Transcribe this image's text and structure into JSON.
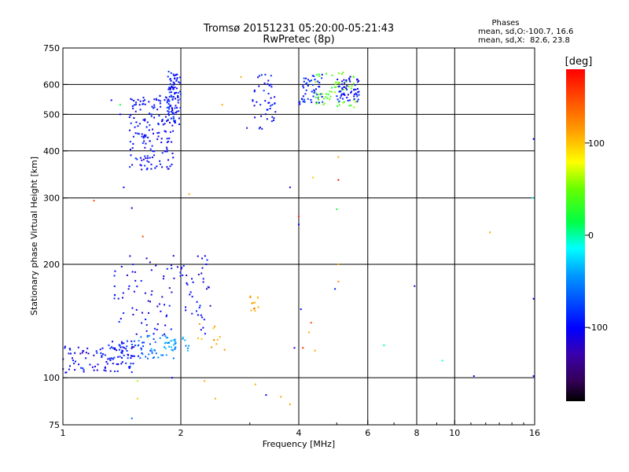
{
  "chart_data": {
    "type": "scatter",
    "title": "Tromsø 20151231 05:20:00-05:21:43",
    "subtitle": "RwPretec (8p)",
    "xlabel": "Frequency [MHz]",
    "ylabel": "Stationary phase Virtual Height [km]",
    "x_scale": "log",
    "y_scale": "log",
    "xlim": [
      1,
      16
    ],
    "ylim": [
      75,
      750
    ],
    "grid": true,
    "x_ticks": [
      1,
      2,
      4,
      6,
      8,
      10,
      16
    ],
    "x_tick_labels": [
      "1",
      "2",
      "4",
      "6",
      "8",
      "10",
      "16"
    ],
    "x_grid": [
      2,
      4,
      6,
      8,
      10
    ],
    "y_ticks": [
      75,
      100,
      200,
      300,
      400,
      500,
      600,
      750
    ],
    "y_tick_labels": [
      "75",
      "100",
      "200",
      "300",
      "400",
      "500",
      "600",
      "750"
    ],
    "y_grid": [
      100,
      200,
      300,
      400,
      500,
      600
    ],
    "phases_box": {
      "title": "Phases",
      "line1": "mean, sd,O:-100.7, 16.6",
      "line2": "mean, sd,X:  82.6, 23.8"
    },
    "colorbar": {
      "label": "[deg]",
      "range": [
        -180,
        180
      ],
      "ticks": [
        -100,
        0,
        100
      ],
      "tick_labels": [
        "-100",
        "0",
        "100"
      ]
    },
    "clusters": [
      {
        "f": [
          1.0,
          1.55
        ],
        "h": [
          103,
          122
        ],
        "phase": -100,
        "n": 90
      },
      {
        "f": [
          1.3,
          1.6
        ],
        "h": [
          112,
          126
        ],
        "phase": -90,
        "n": 40
      },
      {
        "f": [
          1.55,
          1.95
        ],
        "h": [
          112,
          130
        ],
        "phase": -60,
        "n": 40
      },
      {
        "f": [
          1.35,
          2.4
        ],
        "h": [
          130,
          215
        ],
        "phase": -105,
        "n": 110
      },
      {
        "f": [
          1.8,
          2.1
        ],
        "h": [
          118,
          128
        ],
        "phase": -40,
        "n": 25
      },
      {
        "f": [
          2.2,
          2.6
        ],
        "h": [
          118,
          140
        ],
        "phase": 110,
        "n": 12
      },
      {
        "f": [
          3.0,
          3.2
        ],
        "h": [
          150,
          165
        ],
        "phase": 115,
        "n": 12
      },
      {
        "f": [
          1.48,
          1.92
        ],
        "h": [
          355,
          560
        ],
        "phase": -100,
        "n": 170
      },
      {
        "f": [
          1.85,
          2.0
        ],
        "h": [
          470,
          650
        ],
        "phase": -95,
        "n": 90
      },
      {
        "f": [
          3.05,
          3.5
        ],
        "h": [
          455,
          640
        ],
        "phase": -100,
        "n": 45
      },
      {
        "f": [
          4.0,
          4.6
        ],
        "h": [
          530,
          640
        ],
        "phase": -90,
        "n": 50
      },
      {
        "f": [
          4.4,
          5.6
        ],
        "h": [
          520,
          650
        ],
        "phase": 40,
        "n": 60
      },
      {
        "f": [
          5.0,
          5.7
        ],
        "h": [
          540,
          630
        ],
        "phase": -100,
        "n": 60
      }
    ],
    "points": [
      {
        "f": 1.33,
        "h": 545,
        "phase": -100
      },
      {
        "f": 1.4,
        "h": 530,
        "phase": 20
      },
      {
        "f": 1.4,
        "h": 500,
        "phase": -100
      },
      {
        "f": 1.43,
        "h": 320,
        "phase": -100
      },
      {
        "f": 1.5,
        "h": 282,
        "phase": -105
      },
      {
        "f": 1.2,
        "h": 295,
        "phase": 150
      },
      {
        "f": 1.6,
        "h": 237,
        "phase": 150
      },
      {
        "f": 2.1,
        "h": 307,
        "phase": 110
      },
      {
        "f": 2.55,
        "h": 530,
        "phase": 110
      },
      {
        "f": 2.85,
        "h": 628,
        "phase": 110
      },
      {
        "f": 2.95,
        "h": 460,
        "phase": -90
      },
      {
        "f": 3.8,
        "h": 320,
        "phase": -120
      },
      {
        "f": 4.0,
        "h": 268,
        "phase": 160
      },
      {
        "f": 4.0,
        "h": 255,
        "phase": -100
      },
      {
        "f": 4.35,
        "h": 340,
        "phase": 100
      },
      {
        "f": 5.05,
        "h": 385,
        "phase": 110
      },
      {
        "f": 5.05,
        "h": 335,
        "phase": 170
      },
      {
        "f": 5.0,
        "h": 280,
        "phase": 20
      },
      {
        "f": 5.05,
        "h": 200,
        "phase": 110
      },
      {
        "f": 5.05,
        "h": 180,
        "phase": 120
      },
      {
        "f": 4.95,
        "h": 172,
        "phase": -90
      },
      {
        "f": 4.05,
        "h": 152,
        "phase": -100
      },
      {
        "f": 4.25,
        "h": 132,
        "phase": 110
      },
      {
        "f": 4.3,
        "h": 140,
        "phase": 150
      },
      {
        "f": 3.9,
        "h": 120,
        "phase": -120
      },
      {
        "f": 4.1,
        "h": 120,
        "phase": 160
      },
      {
        "f": 4.4,
        "h": 118,
        "phase": 110
      },
      {
        "f": 7.9,
        "h": 175,
        "phase": -120
      },
      {
        "f": 6.6,
        "h": 122,
        "phase": 0
      },
      {
        "f": 9.3,
        "h": 111,
        "phase": -10
      },
      {
        "f": 12.3,
        "h": 243,
        "phase": 110
      },
      {
        "f": 15.8,
        "h": 300,
        "phase": -20
      },
      {
        "f": 15.9,
        "h": 430,
        "phase": -100
      },
      {
        "f": 15.9,
        "h": 162,
        "phase": -100
      },
      {
        "f": 15.9,
        "h": 101,
        "phase": -100
      },
      {
        "f": 11.2,
        "h": 101,
        "phase": -110
      },
      {
        "f": 2.3,
        "h": 98,
        "phase": 110
      },
      {
        "f": 3.1,
        "h": 96,
        "phase": 110
      },
      {
        "f": 3.6,
        "h": 89,
        "phase": 110
      },
      {
        "f": 3.8,
        "h": 85,
        "phase": 110
      },
      {
        "f": 2.45,
        "h": 88,
        "phase": 110
      },
      {
        "f": 1.5,
        "h": 78,
        "phase": -60
      },
      {
        "f": 1.55,
        "h": 88,
        "phase": 100
      },
      {
        "f": 1.9,
        "h": 100,
        "phase": -100
      },
      {
        "f": 1.55,
        "h": 98,
        "phase": 60
      },
      {
        "f": 3.3,
        "h": 90,
        "phase": -100
      }
    ]
  }
}
